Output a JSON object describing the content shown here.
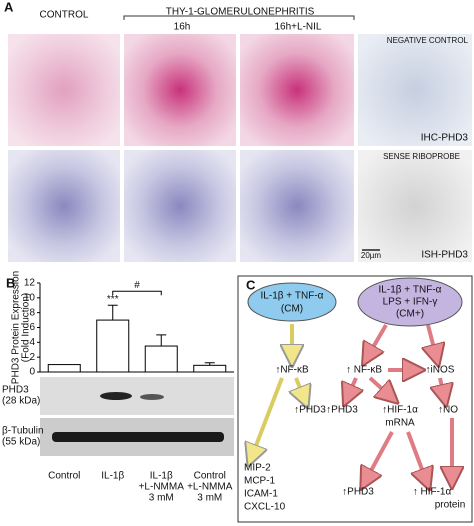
{
  "panel_a": {
    "label": "A",
    "header": {
      "control": "CONTROL",
      "group": "THY-1-GLOMERULONEPHRITIS",
      "time_1": "16h",
      "time_2": "16h+L-NIL"
    },
    "negative_control": "NEGATIVE CONTROL",
    "ihc": "IHC-PHD3",
    "sense": "SENSE RIBOPROBE",
    "ish": "ISH-PHD3",
    "scale_bar": "20µm"
  },
  "chart_data": {
    "type": "bar",
    "label": "B",
    "y_label": [
      "PHD3 Protein Expression",
      "(Fold Induction)"
    ],
    "categories": [
      [
        "Control"
      ],
      [
        "IL-1β"
      ],
      [
        "IL-1β",
        "+L-NMMA",
        "3 mM"
      ],
      [
        "Control",
        "+L-NMMA",
        "3 mM"
      ]
    ],
    "values": [
      1,
      7,
      3.5,
      0.9
    ],
    "errors": [
      null,
      2,
      1.5,
      0.35
    ],
    "color": "#ffffff",
    "ylim": [
      0,
      12
    ],
    "yticks": [
      0,
      2,
      4,
      6,
      8,
      10,
      12
    ],
    "annotations": {
      "significance": "***",
      "comparison": "#"
    },
    "blots": [
      [
        "PHD3",
        "(28 kDa)"
      ],
      [
        "β-Tubulin",
        "(55 kDa)"
      ]
    ]
  },
  "panel_c": {
    "label": "C",
    "cm": [
      "IL-1β + TNF-α",
      "(CM)"
    ],
    "cm_plus": [
      "IL-1β + TNF-α",
      "LPS + IFN-γ",
      "(CM+)"
    ],
    "left": {
      "nfkb": "↑NF-κB",
      "phd3": "↑PHD3",
      "targets": [
        "MIP-2",
        "MCP-1",
        "ICAM-1",
        "CXCL-10"
      ]
    },
    "right": {
      "nfkb": "↑ NF-κB",
      "inos": "↑iNOS",
      "phd3": "↑PHD3",
      "hif_mrna": [
        "↑HIF-1α",
        "mRNA"
      ],
      "no": "↑NO",
      "phd3_protein": "↑PHD3",
      "hif_protein": [
        "↑ HIF-1α",
        "protein"
      ]
    }
  }
}
